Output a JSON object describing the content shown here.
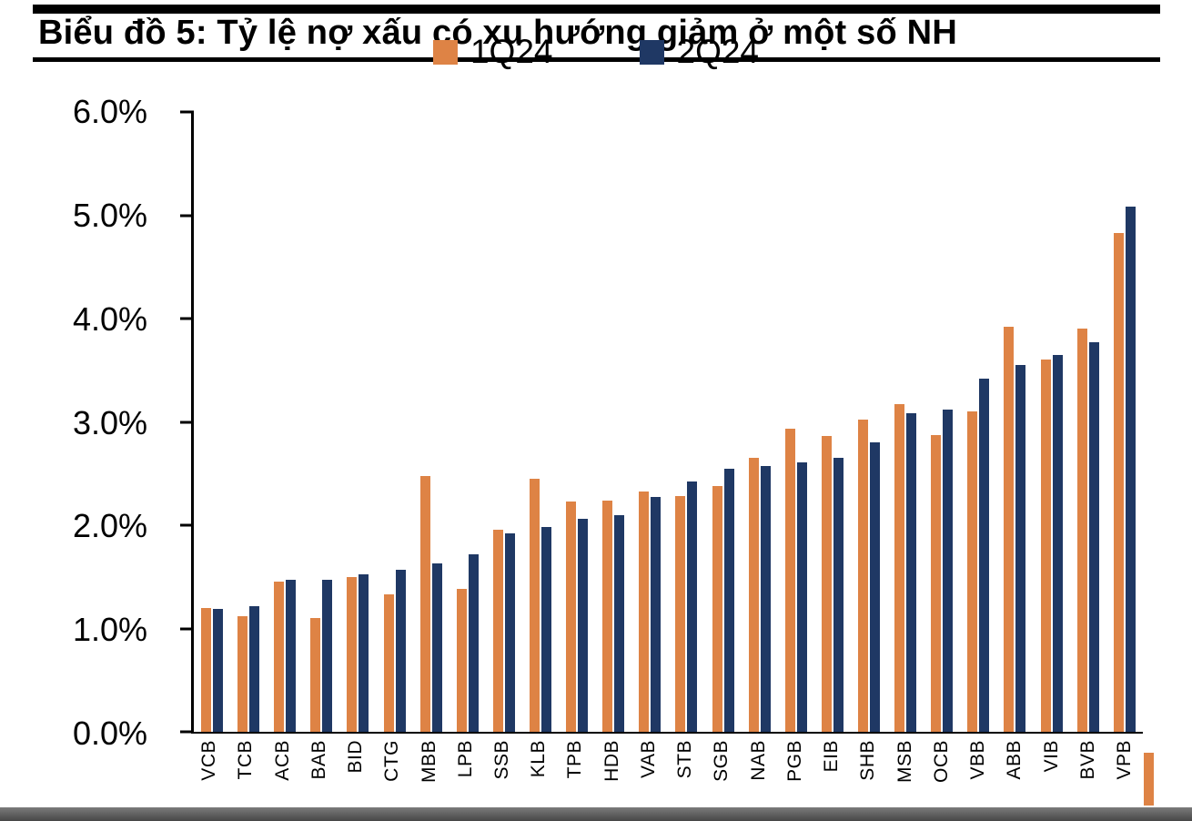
{
  "page": {
    "title": "Biểu đồ 5: Tỷ lệ nợ xấu có xu hướng giảm ở một số NH"
  },
  "chart_data": {
    "type": "bar",
    "title": "Biểu đồ 5: Tỷ lệ nợ xấu có xu hướng giảm ở một số NH",
    "categories": [
      "VCB",
      "TCB",
      "ACB",
      "BAB",
      "BID",
      "CTG",
      "MBB",
      "LPB",
      "SSB",
      "KLB",
      "TPB",
      "HDB",
      "VAB",
      "STB",
      "SGB",
      "NAB",
      "PGB",
      "EIB",
      "SHB",
      "MSB",
      "OCB",
      "VBB",
      "ABB",
      "VIB",
      "BVB",
      "VPB"
    ],
    "series": [
      {
        "name": "1Q24",
        "color": "#DE8345",
        "values": [
          1.2,
          1.12,
          1.45,
          1.1,
          1.5,
          1.33,
          2.48,
          1.38,
          1.96,
          2.45,
          2.23,
          2.24,
          2.33,
          2.28,
          2.38,
          2.65,
          2.93,
          2.86,
          3.02,
          3.17,
          2.87,
          3.1,
          3.92,
          3.6,
          3.9,
          4.83
        ]
      },
      {
        "name": "2Q24",
        "color": "#1F3864",
        "values": [
          1.19,
          1.22,
          1.47,
          1.47,
          1.52,
          1.57,
          1.63,
          1.72,
          1.92,
          1.98,
          2.06,
          2.1,
          2.27,
          2.42,
          2.55,
          2.57,
          2.61,
          2.65,
          2.8,
          3.08,
          3.12,
          3.42,
          3.55,
          3.65,
          3.77,
          5.08
        ]
      }
    ],
    "xlabel": "",
    "ylabel": "",
    "ylim": [
      0,
      6
    ],
    "ytick_step": 1,
    "ytick_labels": [
      "6.0%",
      "5.0%",
      "4.0%",
      "3.0%",
      "2.0%",
      "1.0%",
      "0.0%"
    ],
    "grid": false,
    "legend_position": "top-center"
  },
  "decorations": {
    "accent_strip_color": "#DE8345",
    "footer_bar_color": "#595959",
    "rule_color": "#000000"
  }
}
